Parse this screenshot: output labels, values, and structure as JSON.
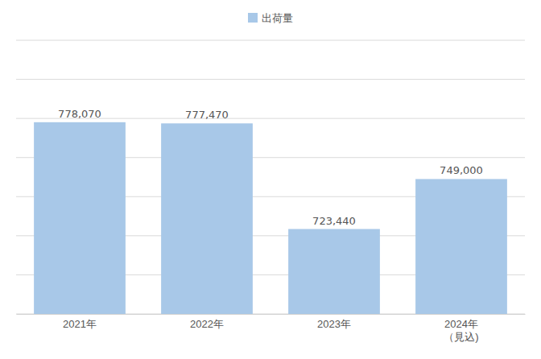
{
  "chart_data": {
    "type": "bar",
    "categories": [
      "2021年",
      "2022年",
      "2023年",
      "2024年\n（見込)"
    ],
    "series": [
      {
        "name": "出荷量",
        "color": "#a8c8e8",
        "values": [
          778070,
          777470,
          723440,
          749000
        ],
        "value_labels": [
          "778,070",
          "777,470",
          "723,440",
          "749,000"
        ]
      }
    ],
    "ylim": [
      680000,
      820000
    ],
    "yticks": [
      680000,
      700000,
      720000,
      740000,
      760000,
      780000,
      800000,
      820000
    ],
    "grid": true,
    "data_labels": true,
    "tick_labels": "x",
    "legend": "top"
  }
}
